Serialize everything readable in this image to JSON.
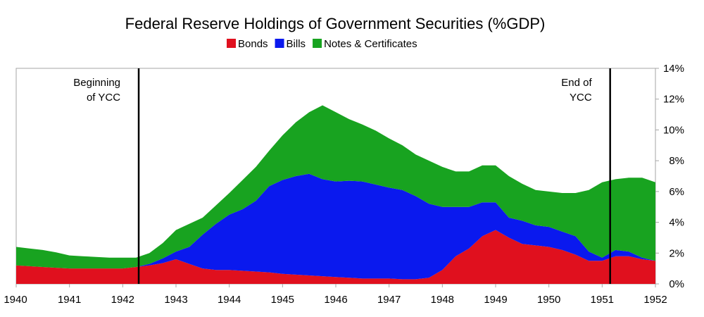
{
  "chart_data": {
    "type": "area",
    "title": "Federal Reserve Holdings of Government Securities (%GDP)",
    "xlabel": "",
    "ylabel": "",
    "xlim": [
      1940,
      1952
    ],
    "ylim": [
      0,
      14
    ],
    "x_ticks": [
      1940,
      1941,
      1942,
      1943,
      1944,
      1945,
      1946,
      1947,
      1948,
      1949,
      1950,
      1951,
      1952
    ],
    "y_ticks": [
      "0%",
      "2%",
      "4%",
      "6%",
      "8%",
      "10%",
      "12%",
      "14%"
    ],
    "y_tick_values": [
      0,
      2,
      4,
      6,
      8,
      10,
      12,
      14
    ],
    "y_axis_side": "right",
    "grid": false,
    "legend_position": "top-center",
    "stacked": true,
    "x": [
      1940,
      1940.25,
      1940.5,
      1940.75,
      1941,
      1941.25,
      1941.5,
      1941.75,
      1942,
      1942.25,
      1942.5,
      1942.75,
      1943,
      1943.25,
      1943.5,
      1943.75,
      1944,
      1944.25,
      1944.5,
      1944.75,
      1945,
      1945.25,
      1945.5,
      1945.75,
      1946,
      1946.25,
      1946.5,
      1946.75,
      1947,
      1947.25,
      1947.5,
      1947.75,
      1948,
      1948.25,
      1948.5,
      1948.75,
      1949,
      1949.25,
      1949.5,
      1949.75,
      1950,
      1950.25,
      1950.5,
      1950.75,
      1951,
      1951.25,
      1951.5,
      1951.75,
      1952
    ],
    "series": [
      {
        "name": "Bonds",
        "color": "#e0101e",
        "values": [
          1.2,
          1.15,
          1.1,
          1.05,
          1.0,
          1.0,
          1.0,
          1.0,
          1.0,
          1.1,
          1.2,
          1.35,
          1.6,
          1.3,
          1.0,
          0.9,
          0.9,
          0.85,
          0.8,
          0.75,
          0.65,
          0.6,
          0.55,
          0.5,
          0.45,
          0.4,
          0.35,
          0.35,
          0.35,
          0.3,
          0.3,
          0.4,
          0.9,
          1.8,
          2.3,
          3.1,
          3.5,
          3.0,
          2.6,
          2.5,
          2.4,
          2.2,
          1.9,
          1.5,
          1.5,
          1.8,
          1.8,
          1.6,
          1.5
        ]
      },
      {
        "name": "Bills",
        "color": "#0a19ee",
        "values": [
          0,
          0,
          0,
          0,
          0,
          0,
          0,
          0,
          0,
          0,
          0.1,
          0.3,
          0.5,
          1.1,
          2.2,
          3.0,
          3.6,
          4.0,
          4.6,
          5.6,
          6.1,
          6.4,
          6.6,
          6.3,
          6.2,
          6.3,
          6.3,
          6.1,
          5.9,
          5.8,
          5.4,
          4.8,
          4.1,
          3.2,
          2.7,
          2.2,
          1.8,
          1.3,
          1.5,
          1.3,
          1.3,
          1.2,
          1.2,
          0.6,
          0.2,
          0.4,
          0.3,
          0.1,
          0.0
        ]
      },
      {
        "name": "Notes & Certificates",
        "color": "#18a320",
        "values": [
          1.2,
          1.15,
          1.1,
          1.0,
          0.85,
          0.8,
          0.75,
          0.7,
          0.7,
          0.6,
          0.7,
          1.0,
          1.4,
          1.5,
          1.1,
          1.2,
          1.4,
          1.9,
          2.2,
          2.3,
          2.9,
          3.5,
          4.0,
          4.8,
          4.5,
          4.0,
          3.7,
          3.5,
          3.2,
          2.9,
          2.7,
          2.8,
          2.6,
          2.3,
          2.3,
          2.4,
          2.4,
          2.7,
          2.4,
          2.3,
          2.3,
          2.5,
          2.8,
          4.0,
          4.9,
          4.6,
          4.8,
          5.2,
          5.1
        ]
      }
    ],
    "annotations": [
      {
        "x": 1942.3,
        "lines": [
          "Beginning",
          "of YCC"
        ],
        "align": "right"
      },
      {
        "x": 1951.15,
        "lines": [
          "End of",
          "YCC"
        ],
        "align": "right"
      }
    ]
  }
}
